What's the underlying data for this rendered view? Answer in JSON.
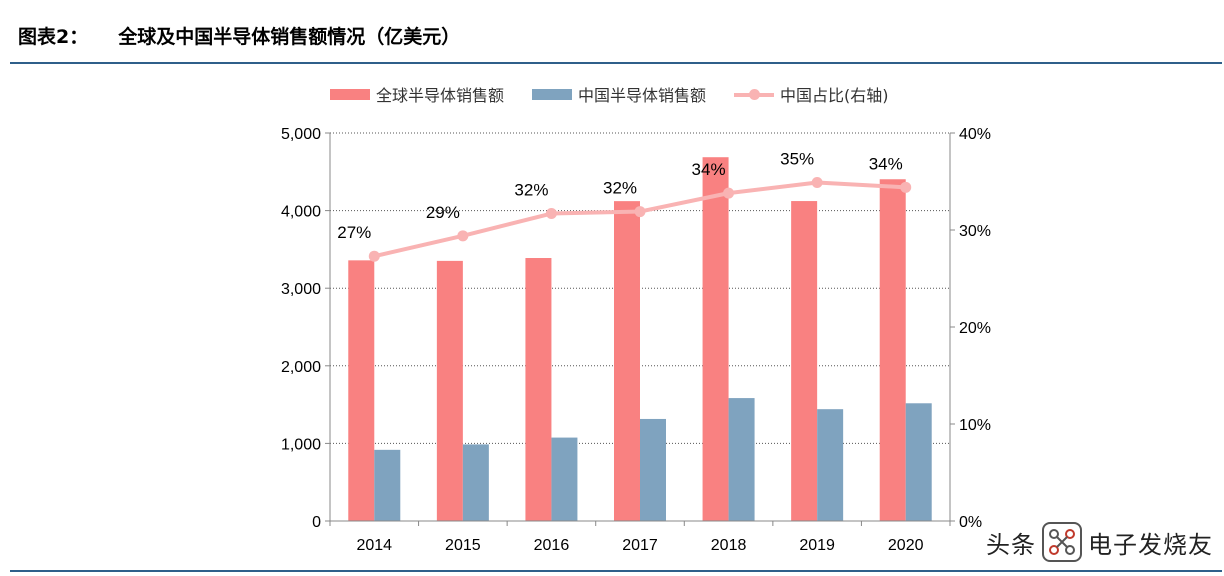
{
  "header": {
    "figure_label": "图表2：",
    "title": "全球及中国半导体销售额情况（亿美元）"
  },
  "watermark": {
    "left_text": "头条",
    "right_text": "电子发烧友"
  },
  "chart_data": {
    "type": "bar",
    "categories": [
      "2014",
      "2015",
      "2016",
      "2017",
      "2018",
      "2019",
      "2020"
    ],
    "series": [
      {
        "name": "全球半导体销售额",
        "kind": "bar",
        "axis": "left",
        "color": "#f98181",
        "values": [
          3359,
          3352,
          3389,
          4122,
          4688,
          4123,
          4404
        ]
      },
      {
        "name": "中国半导体销售额",
        "kind": "bar",
        "axis": "left",
        "color": "#7fa3bf",
        "values": [
          917,
          987,
          1075,
          1315,
          1584,
          1441,
          1517
        ]
      },
      {
        "name": "中国占比(右轴)",
        "kind": "line",
        "axis": "right",
        "color": "#f9b3b3",
        "values": [
          27.3,
          29.4,
          31.7,
          31.9,
          33.8,
          34.9,
          34.4
        ],
        "labels": [
          "27%",
          "29%",
          "32%",
          "32%",
          "34%",
          "35%",
          "34%"
        ]
      }
    ],
    "y_left": {
      "min": 0,
      "max": 5000,
      "ticks": [
        0,
        1000,
        2000,
        3000,
        4000,
        5000
      ],
      "tick_labels": [
        "0",
        "1,000",
        "2,000",
        "3,000",
        "4,000",
        "5,000"
      ]
    },
    "y_right": {
      "min": 0,
      "max": 40,
      "ticks": [
        0,
        10,
        20,
        30,
        40
      ],
      "tick_labels": [
        "0%",
        "10%",
        "20%",
        "30%",
        "40%"
      ]
    },
    "gridlines": true,
    "legend_position": "top"
  }
}
